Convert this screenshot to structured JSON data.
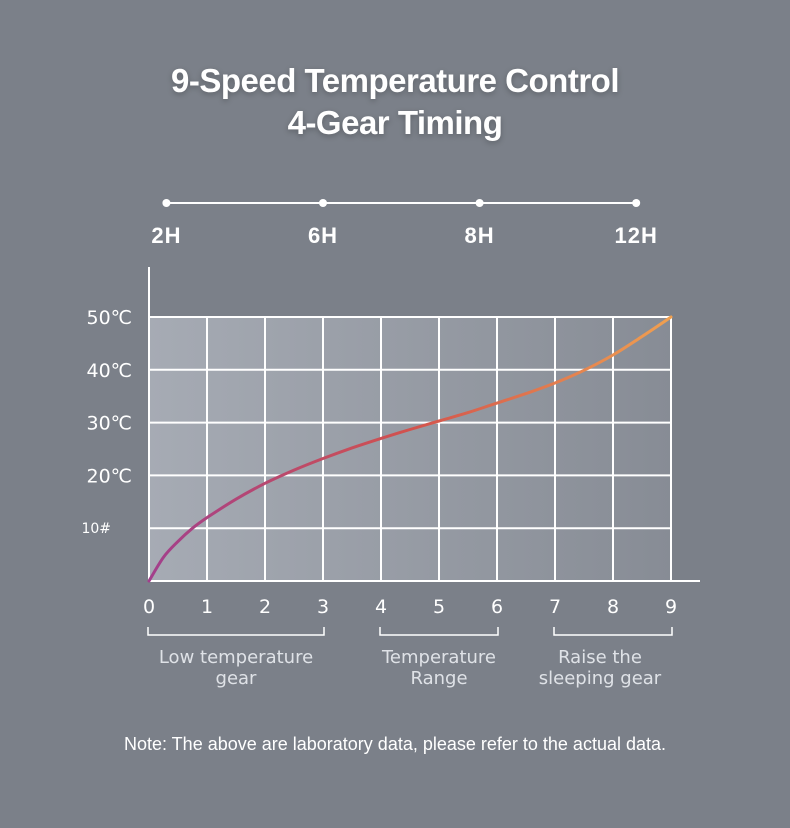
{
  "title_line1": "9-Speed Temperature Control",
  "title_line2": "4-Gear Timing",
  "note": "Note: The above are laboratory data, please refer to the actual data.",
  "colors": {
    "background": "#7b8089",
    "grid": "#ffffff",
    "curve_start": "#a23f8c",
    "curve_mid": "#d2524d",
    "curve_end": "#f0a050"
  },
  "chart_data": {
    "type": "line",
    "title": "",
    "xlabel": "",
    "ylabel": "",
    "x_ticks": [
      "0",
      "1",
      "2",
      "3",
      "4",
      "5",
      "6",
      "7",
      "8",
      "9"
    ],
    "y_ticks": [
      "10#",
      "20℃",
      "30℃",
      "40℃",
      "50℃"
    ],
    "y_tick_values": [
      10,
      20,
      30,
      40,
      50
    ],
    "xlim": [
      0,
      9
    ],
    "ylim": [
      0,
      50
    ],
    "grid": true,
    "timing_labels": [
      {
        "label": "2H",
        "x": 0.3
      },
      {
        "label": "6H",
        "x": 3
      },
      {
        "label": "8H",
        "x": 5.7
      },
      {
        "label": "12H",
        "x": 8.4
      }
    ],
    "ranges": [
      {
        "label": "Low temperature gear",
        "x_start": 0,
        "x_end": 3
      },
      {
        "label": "Temperature Range",
        "x_start": 4,
        "x_end": 6
      },
      {
        "label": "Raise the sleeping gear",
        "x_start": 7,
        "x_end": 9
      }
    ],
    "series": [
      {
        "x": [
          0,
          0.25,
          0.5,
          0.75,
          1,
          1.5,
          2,
          2.5,
          3,
          3.5,
          4,
          4.5,
          5,
          5.5,
          6,
          6.5,
          7,
          7.5,
          8,
          8.5,
          9
        ],
        "y": [
          0,
          4.5,
          7.5,
          10,
          12,
          15.5,
          18.5,
          21,
          23.2,
          25.2,
          27,
          28.7,
          30.3,
          31.9,
          33.7,
          35.5,
          37.5,
          39.9,
          42.8,
          46.3,
          50
        ]
      }
    ]
  }
}
